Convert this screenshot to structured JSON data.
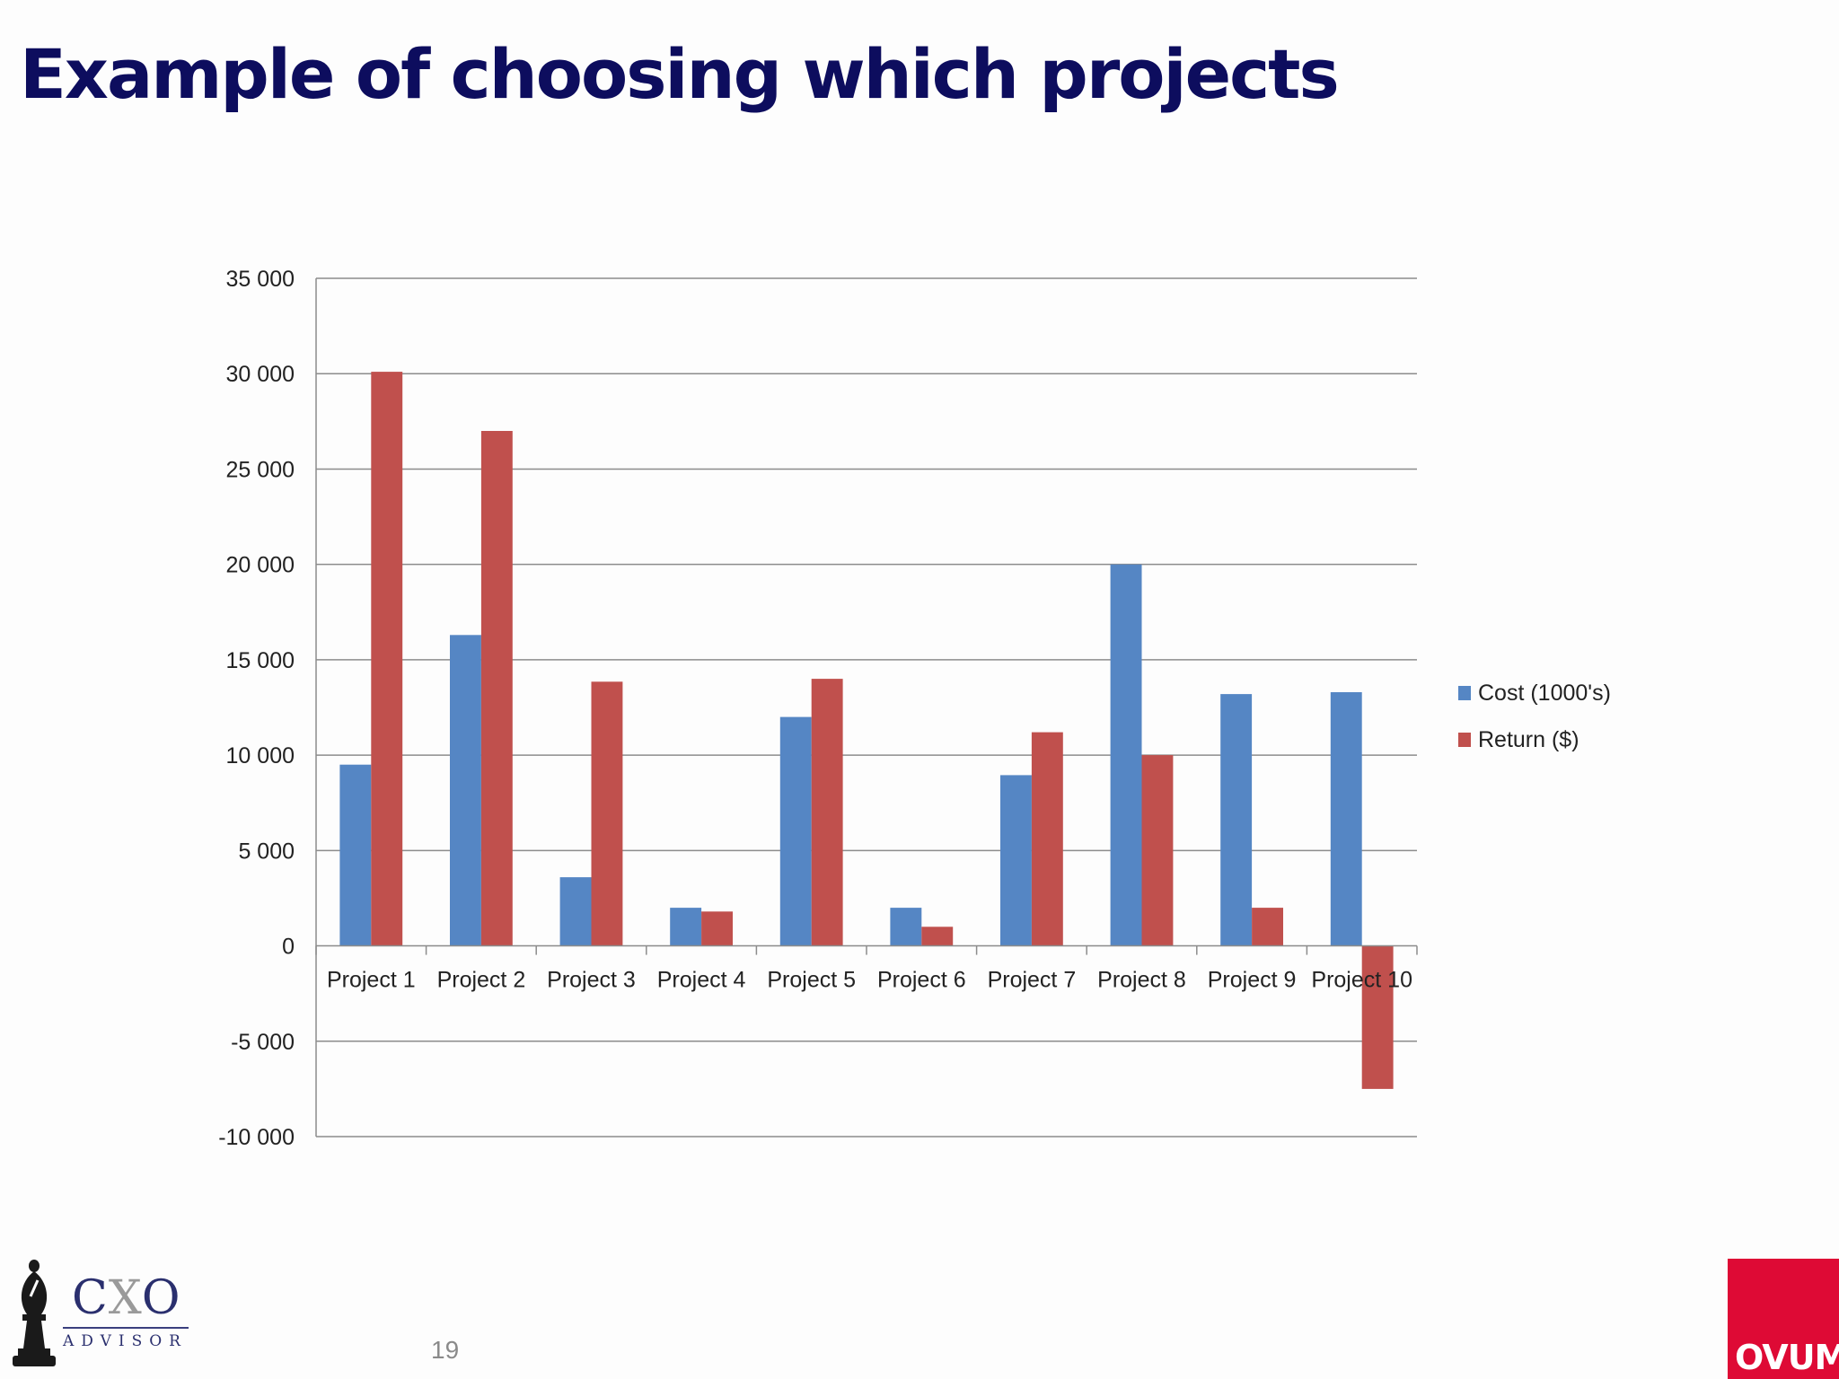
{
  "slide": {
    "title": "Example of choosing which projects",
    "page_number": "19"
  },
  "logos": {
    "cxo": {
      "wordmark_c": "C",
      "wordmark_x": "X",
      "wordmark_o": "O",
      "subtitle": "ADVISOR",
      "icon": "chess-bishop-icon"
    },
    "ovum": {
      "wordmark": "OVUM",
      "color": "#de0a35"
    }
  },
  "chart_data": {
    "type": "bar",
    "title": "",
    "xlabel": "",
    "ylabel": "",
    "categories": [
      "Project 1",
      "Project 2",
      "Project 3",
      "Project 4",
      "Project 5",
      "Project 6",
      "Project 7",
      "Project 8",
      "Project 9",
      "Project 10"
    ],
    "series": [
      {
        "name": "Cost (1000's)",
        "color": "#5586c4",
        "values": [
          9500,
          16300,
          3600,
          2000,
          12000,
          2000,
          8950,
          20000,
          13200,
          13300
        ]
      },
      {
        "name": "Return ($)",
        "color": "#c0504d",
        "values": [
          30100,
          27000,
          13850,
          1800,
          14000,
          1000,
          11200,
          10000,
          2000,
          -7500
        ]
      }
    ],
    "ylim": [
      -10000,
      35000
    ],
    "ytick_step": 5000,
    "ytick_labels": [
      "-10 000",
      "-5 000",
      "0",
      "5 000",
      "10 000",
      "15 000",
      "20 000",
      "25 000",
      "30 000",
      "35 000"
    ],
    "grid": true,
    "legend_position": "right"
  }
}
